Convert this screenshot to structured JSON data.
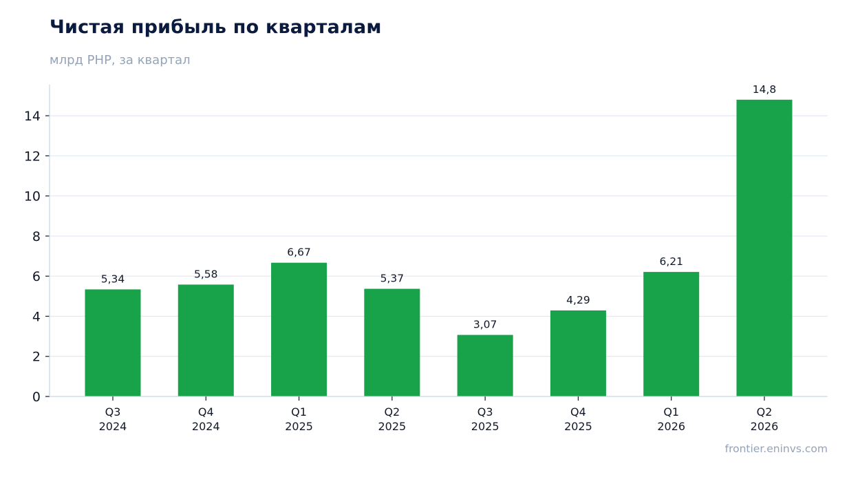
{
  "header": {
    "title": "Чистая прибыль по кварталам",
    "subtitle": "млрд РНР, за квартал"
  },
  "footer": {
    "source": "frontier.eninvs.com"
  },
  "colors": {
    "bar": "#18a34a",
    "grid": "#e2e8f0",
    "axis": "#cbd5e1",
    "text": "#111827"
  },
  "chart_data": {
    "type": "bar",
    "title": "Чистая прибыль по кварталам",
    "subtitle": "млрд РНР, за квартал",
    "categories": [
      [
        "Q3",
        "2024"
      ],
      [
        "Q4",
        "2024"
      ],
      [
        "Q1",
        "2025"
      ],
      [
        "Q2",
        "2025"
      ],
      [
        "Q3",
        "2025"
      ],
      [
        "Q4",
        "2025"
      ],
      [
        "Q1",
        "2026"
      ],
      [
        "Q2",
        "2026"
      ]
    ],
    "values": [
      5.34,
      5.58,
      6.67,
      5.37,
      3.07,
      4.29,
      6.21,
      14.8
    ],
    "data_labels": [
      "5,34",
      "5,58",
      "6,67",
      "5,37",
      "3,07",
      "4,29",
      "6,21",
      "14,8"
    ],
    "yticks": [
      0,
      2,
      4,
      6,
      8,
      10,
      12,
      14
    ],
    "ylim": [
      0,
      15.55
    ],
    "grid": true,
    "legend": false
  }
}
